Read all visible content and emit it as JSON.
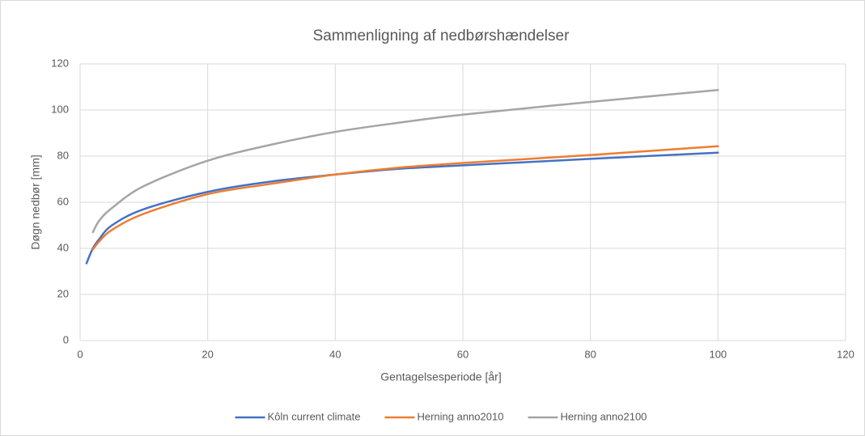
{
  "chart_data": {
    "type": "line",
    "title": "Sammenligning af nedbørshændelser",
    "xlabel": "Gentagelsesperiode [år]",
    "ylabel": "Døgn nedbør [mm]",
    "x": [
      1,
      2,
      3,
      5,
      10,
      20,
      30,
      40,
      50,
      60,
      80,
      100
    ],
    "series": [
      {
        "name": "Kôln current climate",
        "color": "#4472c4",
        "values": [
          33.5,
          40,
          44,
          50,
          57,
          64.5,
          69,
          72,
          74.5,
          76,
          78.8,
          81.5
        ]
      },
      {
        "name": "Herning anno2010",
        "color": "#ed7d31",
        "values": [
          null,
          39.5,
          43,
          48,
          55,
          63.5,
          68,
          72,
          75,
          77,
          80.5,
          84.3
        ]
      },
      {
        "name": "Herning anno2100",
        "color": "#a5a5a5",
        "values": [
          null,
          47,
          52,
          57.5,
          67,
          78,
          85,
          90.5,
          94.5,
          98,
          103.5,
          108.7
        ]
      }
    ],
    "xlim": [
      0,
      120
    ],
    "xticks": [
      0,
      20,
      40,
      60,
      80,
      100,
      120
    ],
    "ylim": [
      0,
      120
    ],
    "yticks": [
      0,
      20,
      40,
      60,
      80,
      100,
      120
    ],
    "grid": true,
    "legend": "bottom"
  }
}
